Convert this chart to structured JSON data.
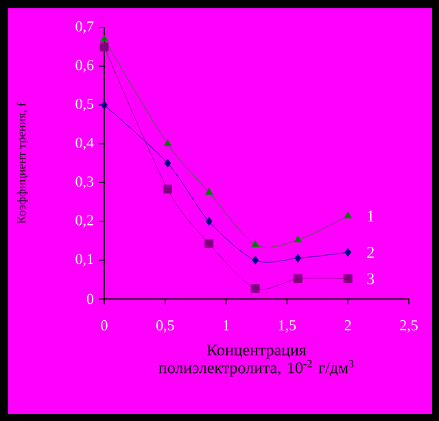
{
  "chart_data": {
    "type": "line",
    "xlabel": "Концентрация полиэлектролита, 10$^{-2}$ г/дм$^{3}$",
    "ylabel": "Коэффициент трения, f",
    "x": [
      0,
      0.52,
      0.86,
      1.24,
      1.59,
      2
    ],
    "series": [
      {
        "name": "1",
        "color": "#008000",
        "marker": "triangle",
        "values": [
          0.67,
          0.4,
          0.275,
          0.14,
          0.152,
          0.214
        ]
      },
      {
        "name": "2",
        "color": "#000080",
        "marker": "diamond",
        "values": [
          0.5,
          0.35,
          0.2,
          0.1,
          0.105,
          0.12
        ]
      },
      {
        "name": "3",
        "color": "#800080",
        "marker": "square",
        "values": [
          0.65,
          0.283,
          0.143,
          0.027,
          0.052,
          0.052
        ]
      }
    ],
    "xlim": [
      0,
      2.5
    ],
    "xticks": [
      {
        "value": 0,
        "label": "0"
      },
      {
        "value": 0.5,
        "label": "0,5"
      },
      {
        "value": 1,
        "label": "1"
      },
      {
        "value": 1.5,
        "label": "1,5"
      },
      {
        "value": 2,
        "label": "2"
      },
      {
        "value": 2.5,
        "label": "2,5"
      }
    ],
    "ylim": [
      0,
      0.7
    ],
    "yticks": [
      {
        "value": 0,
        "label": "0"
      },
      {
        "value": 0.1,
        "label": "0,1"
      },
      {
        "value": 0.2,
        "label": "0,2"
      },
      {
        "value": 0.3,
        "label": "0,3"
      },
      {
        "value": 0.4,
        "label": "0,4"
      },
      {
        "value": 0.5,
        "label": "0,5"
      },
      {
        "value": 0.6,
        "label": "0,6"
      },
      {
        "value": 0.7,
        "label": "0,7"
      }
    ],
    "grid": false,
    "legend": false,
    "line_style": "solid"
  }
}
